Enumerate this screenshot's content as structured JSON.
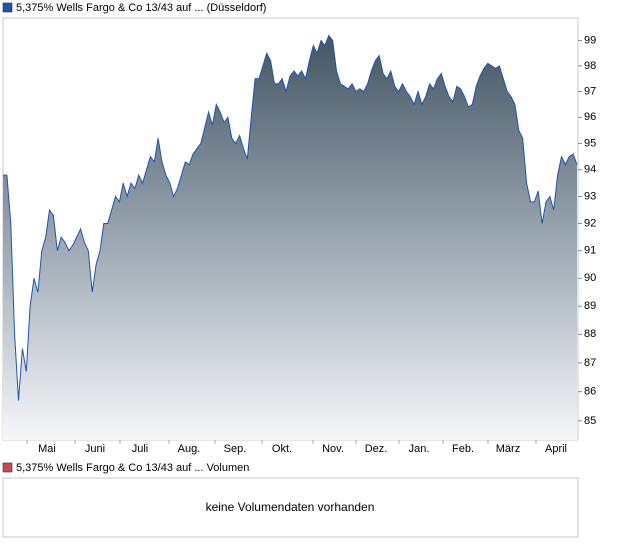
{
  "chart_data": {
    "type": "area",
    "log_scale": true,
    "ylim": [
      84.35,
      99.9
    ],
    "yticks": [
      85,
      86,
      87,
      88,
      89,
      90,
      91,
      92,
      93,
      94,
      95,
      96,
      97,
      98,
      99
    ],
    "x_labels": [
      "Mai",
      "Juni",
      "Juli",
      "Aug.",
      "Sep.",
      "Okt.",
      "Nov.",
      "Dez.",
      "Jan.",
      "Feb.",
      "März",
      "April"
    ],
    "series": [
      {
        "name": "5,375% Wells Fargo & Co 13/43 auf ... (Düsseldorf)",
        "color": "#2255aa",
        "values": [
          93.8,
          93.8,
          92,
          88,
          85.7,
          87.5,
          86.7,
          89,
          90,
          89.5,
          91,
          91.5,
          92.5,
          92.3,
          91,
          91.5,
          91.3,
          91,
          91.2,
          91.5,
          91.8,
          91.3,
          91,
          89.5,
          90.5,
          91,
          92,
          92,
          92.5,
          93,
          92.8,
          93.5,
          93,
          93.5,
          93.3,
          93.8,
          93.5,
          94,
          94.5,
          94.3,
          95.2,
          94.3,
          93.8,
          93.5,
          93,
          93.3,
          93.8,
          94.3,
          94.2,
          94.6,
          94.8,
          95,
          95.6,
          96.2,
          95.7,
          96.5,
          96.2,
          95.8,
          96,
          95.2,
          95,
          95.3,
          94.8,
          94.4,
          96,
          97.5,
          97.5,
          98,
          98.5,
          98.2,
          97.3,
          97.3,
          97.5,
          97,
          97.6,
          97.8,
          97.6,
          97.8,
          97.5,
          98.2,
          98.8,
          98.5,
          99,
          98.8,
          99.2,
          99,
          97.8,
          97.3,
          97.2,
          97.1,
          97.3,
          97,
          97.1,
          97,
          97.3,
          97.8,
          98.2,
          98.4,
          97.7,
          97.5,
          97.8,
          97.2,
          97,
          97.3,
          97,
          96.8,
          96.5,
          97,
          96.5,
          96.8,
          97.3,
          97.1,
          97.5,
          97.7,
          97.2,
          96.8,
          96.6,
          97.2,
          97.1,
          96.8,
          96.4,
          96.5,
          97.2,
          97.6,
          97.9,
          98.1,
          98,
          97.9,
          98,
          97.5,
          97,
          96.8,
          96.5,
          95.5,
          95.2,
          93.5,
          92.8,
          92.8,
          93.2,
          92,
          92.8,
          93,
          92.5,
          93.8,
          94.5,
          94.2,
          94.5,
          94.6,
          94.2
        ]
      }
    ],
    "volume_panel": {
      "legend": "5,375% Wells Fargo & Co 13/43 auf ... Volumen",
      "legend_color": "#c84b4b",
      "message": "keine Volumendaten vorhanden"
    }
  }
}
